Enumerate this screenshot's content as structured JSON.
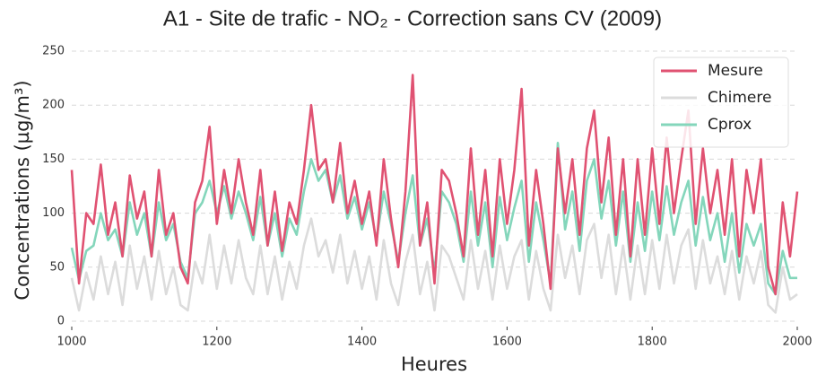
{
  "chart_data": {
    "type": "line",
    "title": "A1 - Site de trafic - NO₂ - Correction sans CV (2009)",
    "x_label": "Heures",
    "y_label": "Concentrations (µg/m³)",
    "x": [
      1000,
      1010,
      1020,
      1030,
      1040,
      1050,
      1060,
      1070,
      1080,
      1090,
      1100,
      1110,
      1120,
      1130,
      1140,
      1150,
      1160,
      1170,
      1180,
      1190,
      1200,
      1210,
      1220,
      1230,
      1240,
      1250,
      1260,
      1270,
      1280,
      1290,
      1300,
      1310,
      1320,
      1330,
      1340,
      1350,
      1360,
      1370,
      1380,
      1390,
      1400,
      1410,
      1420,
      1430,
      1440,
      1450,
      1460,
      1470,
      1480,
      1490,
      1500,
      1510,
      1520,
      1530,
      1540,
      1550,
      1560,
      1570,
      1580,
      1590,
      1600,
      1610,
      1620,
      1630,
      1640,
      1650,
      1660,
      1670,
      1680,
      1690,
      1700,
      1710,
      1720,
      1730,
      1740,
      1750,
      1760,
      1770,
      1780,
      1790,
      1800,
      1810,
      1820,
      1830,
      1840,
      1850,
      1860,
      1870,
      1880,
      1890,
      1900,
      1910,
      1920,
      1930,
      1940,
      1950,
      1960,
      1970,
      1980,
      1990,
      2000
    ],
    "series": [
      {
        "name": "Mesure",
        "color": "#e05272",
        "values": [
          140,
          35,
          100,
          90,
          145,
          80,
          110,
          60,
          135,
          95,
          120,
          60,
          140,
          80,
          100,
          50,
          35,
          110,
          130,
          180,
          90,
          140,
          100,
          150,
          110,
          80,
          140,
          70,
          120,
          65,
          110,
          90,
          140,
          200,
          140,
          150,
          110,
          165,
          100,
          130,
          90,
          120,
          70,
          150,
          95,
          50,
          120,
          228,
          70,
          110,
          35,
          140,
          130,
          100,
          60,
          160,
          80,
          140,
          60,
          150,
          90,
          140,
          215,
          70,
          140,
          90,
          30,
          160,
          100,
          150,
          80,
          160,
          195,
          110,
          170,
          80,
          150,
          60,
          150,
          80,
          160,
          90,
          170,
          100,
          150,
          195,
          90,
          160,
          100,
          140,
          80,
          150,
          60,
          140,
          100,
          150,
          50,
          25,
          110,
          60,
          120
        ]
      },
      {
        "name": "Chimere",
        "color": "#dcdcdc",
        "values": [
          40,
          10,
          45,
          20,
          60,
          25,
          55,
          15,
          70,
          30,
          60,
          20,
          65,
          25,
          50,
          15,
          10,
          55,
          35,
          80,
          30,
          70,
          35,
          75,
          40,
          25,
          70,
          25,
          60,
          20,
          55,
          30,
          70,
          95,
          60,
          75,
          45,
          80,
          35,
          65,
          30,
          60,
          20,
          75,
          35,
          15,
          55,
          80,
          25,
          55,
          10,
          70,
          60,
          40,
          20,
          75,
          30,
          65,
          20,
          70,
          30,
          60,
          75,
          20,
          65,
          30,
          10,
          80,
          40,
          70,
          25,
          75,
          90,
          40,
          80,
          25,
          70,
          20,
          70,
          25,
          75,
          30,
          80,
          35,
          70,
          85,
          30,
          75,
          35,
          60,
          25,
          65,
          20,
          60,
          35,
          65,
          15,
          8,
          50,
          20,
          25
        ]
      },
      {
        "name": "Cprox",
        "color": "#84d6bb",
        "values": [
          68,
          38,
          65,
          70,
          100,
          75,
          85,
          60,
          110,
          80,
          100,
          60,
          110,
          75,
          90,
          55,
          40,
          100,
          110,
          130,
          100,
          125,
          95,
          120,
          100,
          75,
          115,
          70,
          100,
          60,
          95,
          80,
          120,
          150,
          130,
          140,
          110,
          135,
          95,
          115,
          85,
          110,
          75,
          120,
          90,
          55,
          100,
          135,
          70,
          95,
          45,
          120,
          110,
          90,
          55,
          120,
          70,
          110,
          50,
          115,
          75,
          105,
          130,
          55,
          110,
          75,
          35,
          165,
          85,
          120,
          65,
          130,
          150,
          95,
          130,
          70,
          120,
          55,
          110,
          65,
          120,
          75,
          125,
          80,
          110,
          130,
          70,
          115,
          75,
          100,
          55,
          100,
          45,
          90,
          70,
          90,
          35,
          25,
          65,
          40,
          40
        ]
      }
    ],
    "xlim": [
      1000,
      2000
    ],
    "xticks": [
      1000,
      1200,
      1400,
      1600,
      1800,
      2000
    ],
    "ylim": [
      0,
      250
    ],
    "yticks": [
      0,
      50,
      100,
      150,
      200,
      250
    ],
    "grid": true,
    "legend": "upper right"
  }
}
